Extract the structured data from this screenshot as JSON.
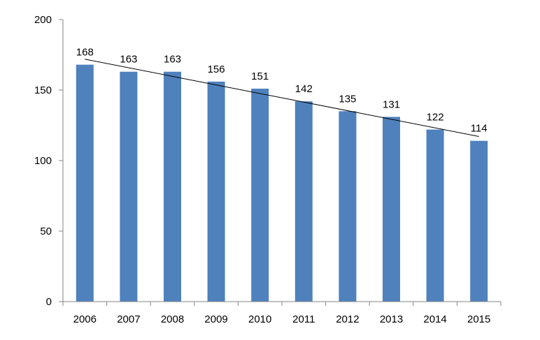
{
  "chart_data": {
    "type": "bar",
    "categories": [
      "2006",
      "2007",
      "2008",
      "2009",
      "2010",
      "2011",
      "2012",
      "2013",
      "2014",
      "2015"
    ],
    "values": [
      168,
      163,
      163,
      156,
      151,
      142,
      135,
      131,
      122,
      114
    ],
    "ylim": [
      0,
      200
    ],
    "yticks": [
      0,
      50,
      100,
      150,
      200
    ],
    "title": "",
    "xlabel": "",
    "ylabel": "",
    "data_labels": true,
    "trendline": "linear",
    "grid": false,
    "legend": "none",
    "colors": {
      "bar": "#4F81BD",
      "trendline": "#000000",
      "axis": "#868686"
    }
  }
}
